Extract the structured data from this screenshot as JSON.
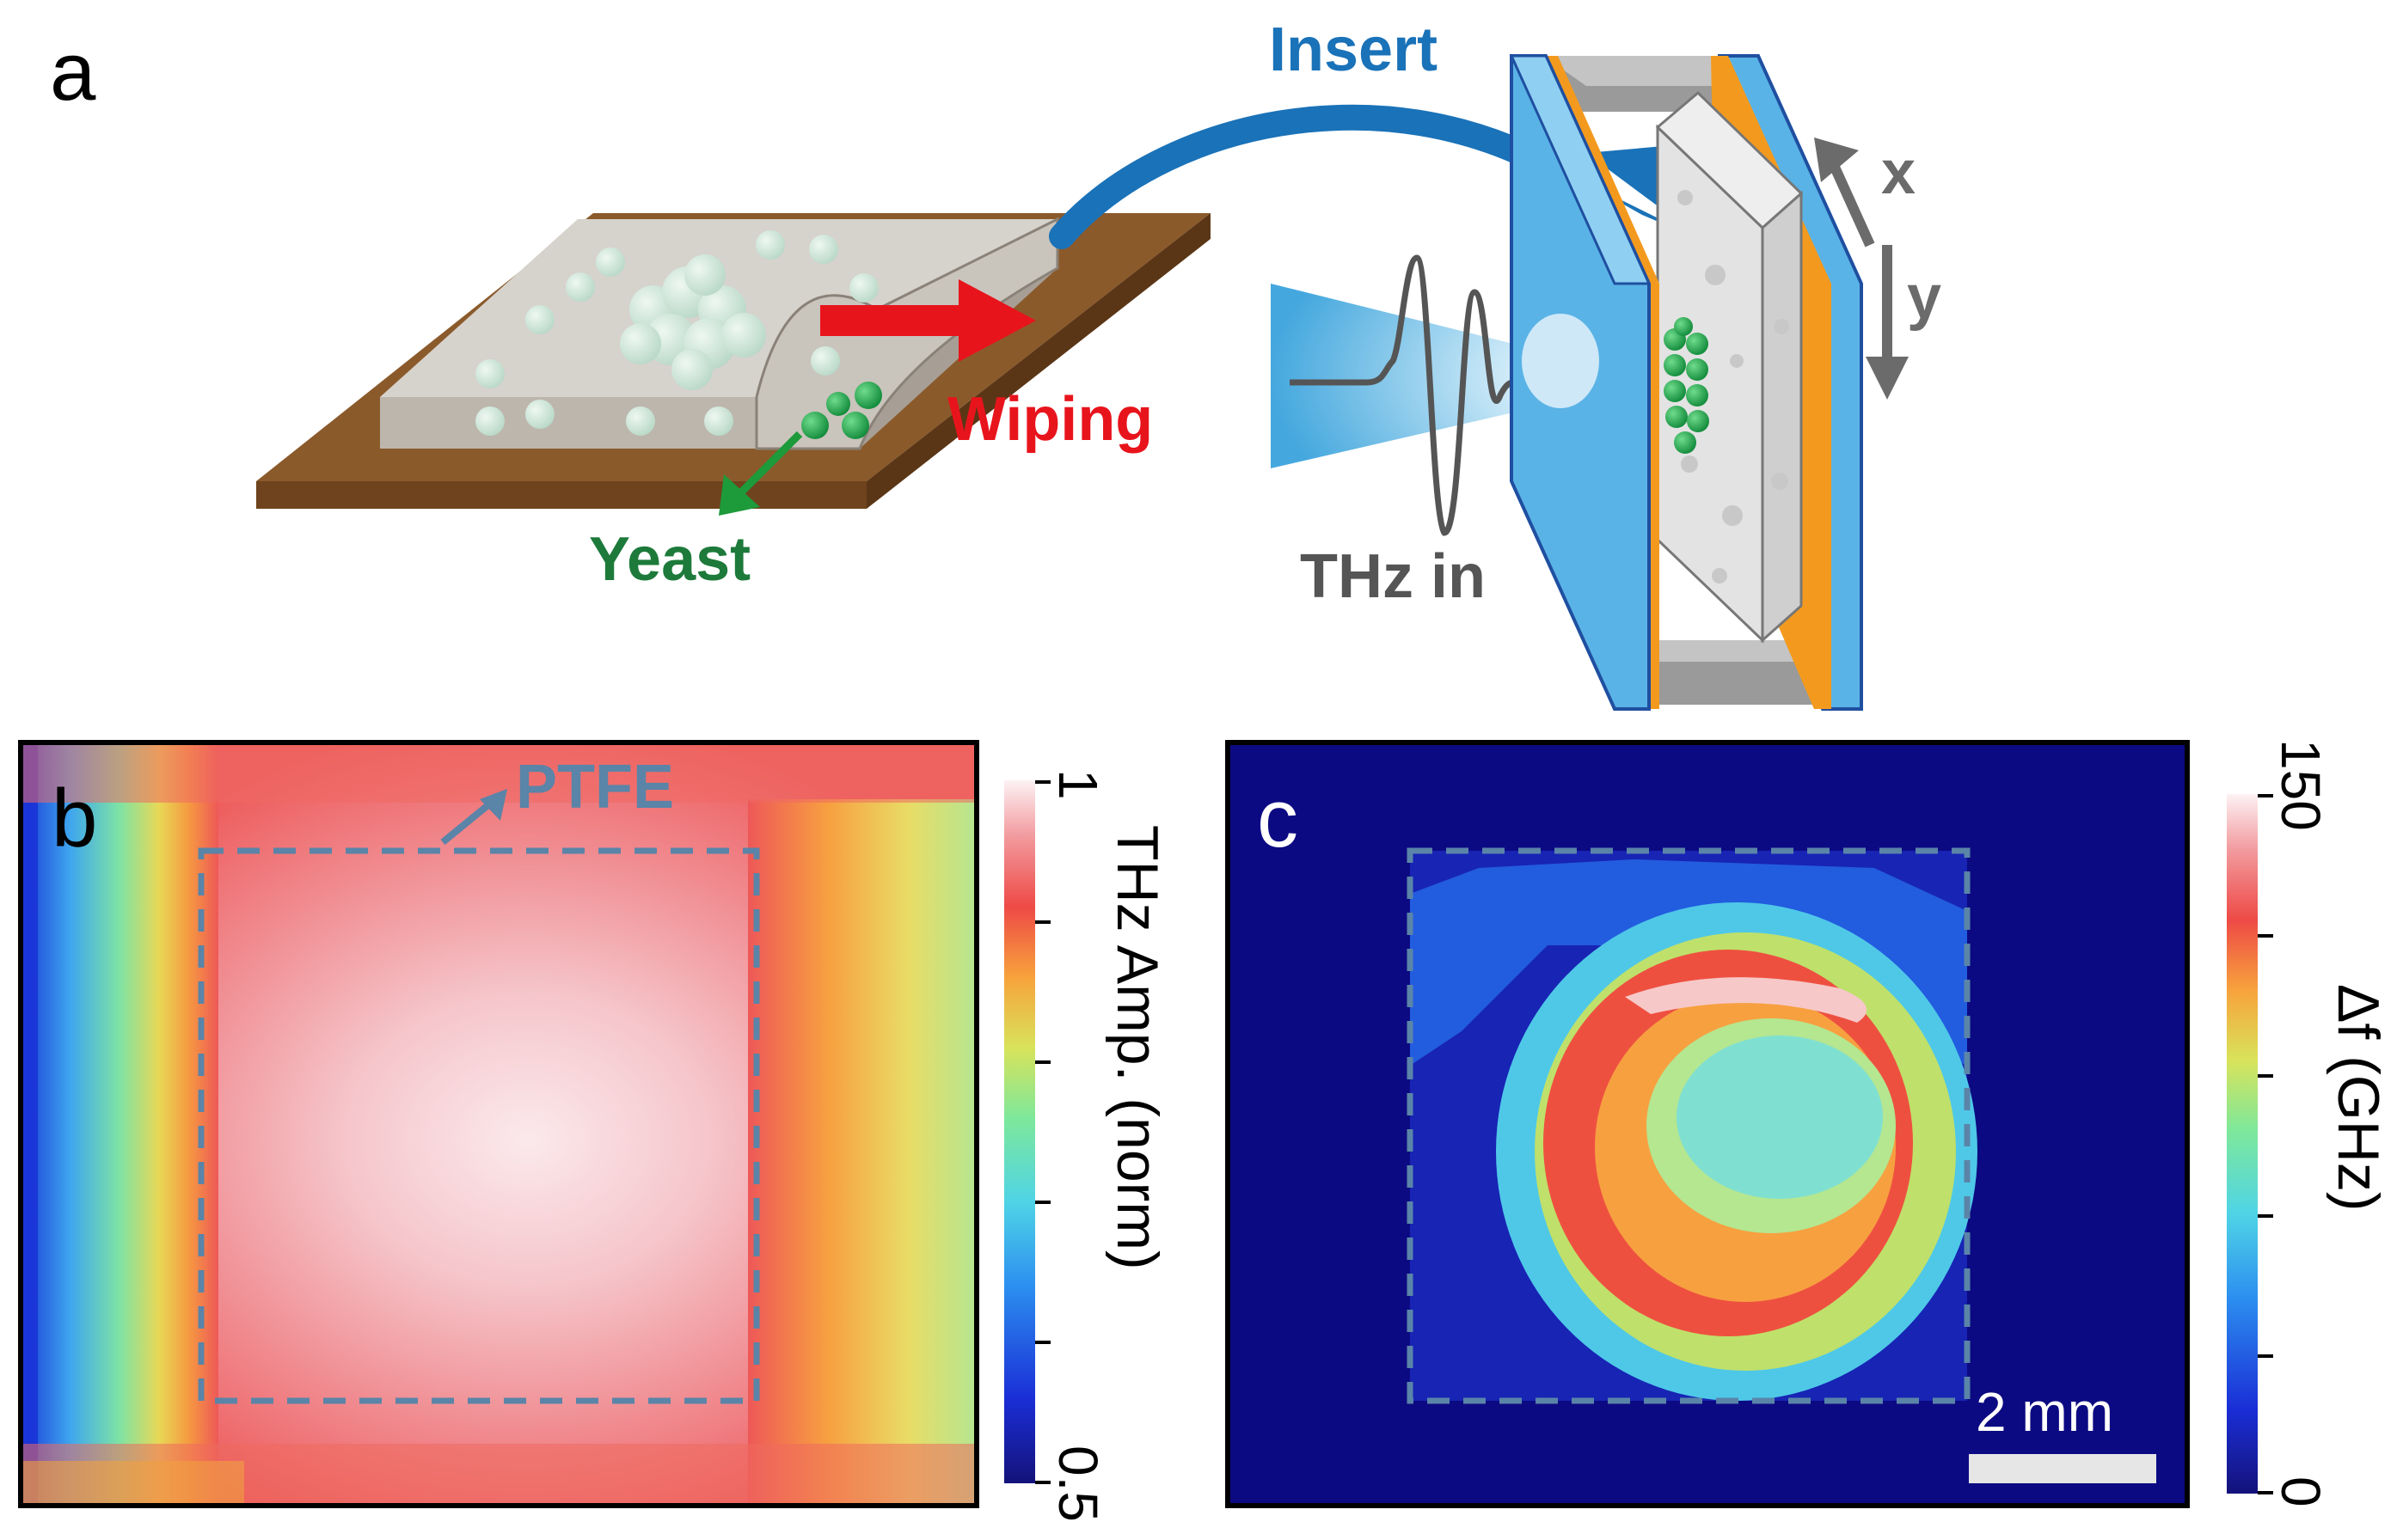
{
  "panel_a": {
    "label": "a",
    "insert": "Insert",
    "wiping": "Wiping",
    "yeast": "Yeast",
    "thz_in": "THz in",
    "axis_x": "x",
    "axis_y": "y"
  },
  "panel_b": {
    "label": "b",
    "ptfe": "PTFE",
    "colorbar_title": "THz Amp. (norm)",
    "colorbar_max": "1",
    "colorbar_min": "0.5"
  },
  "panel_c": {
    "label": "c",
    "scalebar": "2 mm",
    "colorbar_title": "Δf (GHz)",
    "colorbar_max": "150",
    "colorbar_min": "0"
  },
  "colors": {
    "insert_blue": "#1a72b8",
    "wiping_red": "#e8141c",
    "yeast_green": "#1d7a3a",
    "thz_gray": "#555555",
    "plate_brown": "#8b5a2b",
    "glass_blue": "#5ab3e6",
    "spacer_orange": "#f39a1e",
    "dash_blue": "#5a84a8",
    "dark_blue": "#0c0a82"
  }
}
